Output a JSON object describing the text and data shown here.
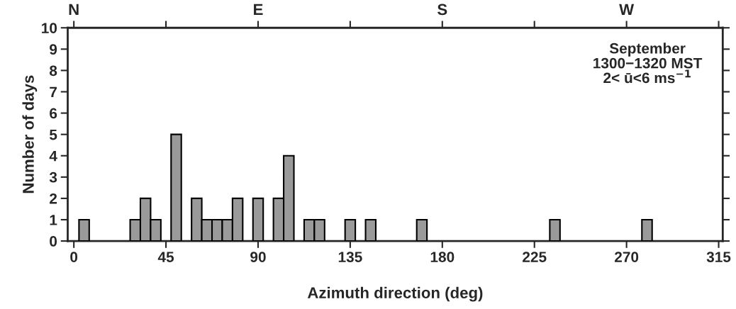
{
  "chart_data": {
    "type": "bar",
    "xlabel": "Azimuth direction (deg)",
    "ylabel": "Number of days",
    "x": [
      5,
      30,
      35,
      40,
      50,
      60,
      65,
      70,
      75,
      80,
      90,
      100,
      105,
      115,
      120,
      135,
      145,
      170,
      235,
      280
    ],
    "values": [
      1,
      1,
      2,
      1,
      5,
      2,
      1,
      1,
      1,
      2,
      2,
      2,
      4,
      1,
      1,
      1,
      1,
      1,
      1,
      1
    ],
    "color": "#9a9a9a",
    "xlim": [
      -3,
      317
    ],
    "xticks": [
      0,
      45,
      90,
      135,
      180,
      225,
      270,
      315
    ],
    "ylim": [
      0,
      10
    ],
    "yticks": [
      0,
      1,
      2,
      3,
      4,
      5,
      6,
      7,
      8,
      9,
      10
    ],
    "annotations": [
      "September\n1300−1320 MST\n2< ū<6 ms$^{−1}$",
      "N",
      "E",
      "S",
      "W"
    ],
    "grid": false
  }
}
